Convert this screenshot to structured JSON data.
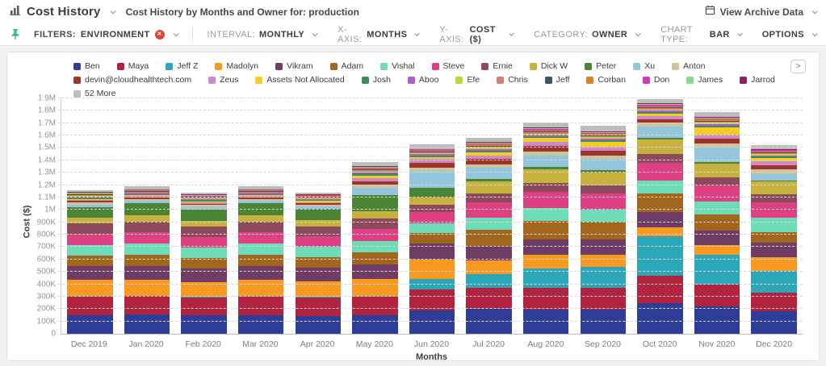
{
  "header": {
    "title": "Cost History",
    "subtitle": "Cost History by Months and Owner for: production",
    "archive_label": "View Archive Data"
  },
  "filter_bar": {
    "filters_label": "FILTERS:",
    "filters_value": "ENVIRONMENT",
    "filters_badge": "✕",
    "controls": [
      {
        "label": "INTERVAL:",
        "value": "MONTHLY"
      },
      {
        "label": "X-AXIS:",
        "value": "MONTHS"
      },
      {
        "label": "Y-AXIS:",
        "value": "COST ($)"
      },
      {
        "label": "CATEGORY:",
        "value": "OWNER"
      },
      {
        "label": "CHART TYPE:",
        "value": "BAR"
      },
      {
        "label": "",
        "value": "OPTIONS"
      }
    ]
  },
  "legend_next_button": ">",
  "chart_data": {
    "type": "bar",
    "stacked": true,
    "xlabel": "Months",
    "ylabel": "Cost ($)",
    "ylim": [
      0,
      1900000
    ],
    "ytick_step": 100000,
    "ytick_labels": [
      "0",
      "100K",
      "200K",
      "300K",
      "400K",
      "500K",
      "600K",
      "700K",
      "800K",
      "900K",
      "1M",
      "1.1M",
      "1.2M",
      "1.3M",
      "1.4M",
      "1.5M",
      "1.6M",
      "1.7M",
      "1.8M",
      "1.9M"
    ],
    "grid": "dashed-horizontal",
    "legend_position": "top",
    "categories": [
      "Dec 2019",
      "Jan 2020",
      "Feb 2020",
      "Mar 2020",
      "Apr 2020",
      "May 2020",
      "Jun 2020",
      "Jul 2020",
      "Aug 2020",
      "Sep 2020",
      "Oct 2020",
      "Nov 2020",
      "Dec 2020"
    ],
    "values_unit": "thousand USD",
    "approx_totals_k": [
      1161,
      1193,
      1140,
      1193,
      1143,
      1390,
      1531,
      1582,
      1707,
      1677,
      1892,
      1789,
      1524
    ],
    "series": [
      {
        "name": "Ben",
        "color": "#2e3d96",
        "values": [
          150,
          155,
          150,
          150,
          145,
          150,
          190,
          200,
          195,
          195,
          250,
          220,
          180
        ]
      },
      {
        "name": "Maya",
        "color": "#b22340",
        "values": [
          150,
          150,
          145,
          150,
          148,
          150,
          165,
          170,
          175,
          175,
          220,
          180,
          150
        ]
      },
      {
        "name": "Jeff Z",
        "color": "#2ba7b8",
        "values": [
          4,
          4,
          4,
          4,
          4,
          8,
          88,
          110,
          160,
          170,
          320,
          240,
          180
        ]
      },
      {
        "name": "Madolyn",
        "color": "#f89a22",
        "values": [
          130,
          125,
          120,
          130,
          125,
          135,
          159,
          110,
          105,
          100,
          72,
          75,
          110
        ]
      },
      {
        "name": "Vikram",
        "color": "#6e3c64",
        "values": [
          110,
          115,
          110,
          115,
          110,
          120,
          124,
          120,
          125,
          120,
          120,
          120,
          115
        ]
      },
      {
        "name": "Adam",
        "color": "#a2661f",
        "values": [
          87,
          90,
          85,
          90,
          85,
          95,
          88,
          130,
          150,
          145,
          150,
          130,
          85
        ]
      },
      {
        "name": "Vishal",
        "color": "#6edcb7",
        "values": [
          87,
          90,
          85,
          90,
          85,
          90,
          81,
          100,
          105,
          100,
          102,
          100,
          120
        ]
      },
      {
        "name": "Steve",
        "color": "#dd4183",
        "values": [
          88,
          90,
          85,
          90,
          85,
          95,
          87,
          120,
          130,
          125,
          143,
          130,
          120
        ]
      },
      {
        "name": "Ernie",
        "color": "#8c4a5c",
        "values": [
          85,
          85,
          80,
          85,
          80,
          85,
          57,
          70,
          75,
          70,
          76,
          70,
          65
        ]
      },
      {
        "name": "Dick W",
        "color": "#c7b13f",
        "values": [
          49,
          55,
          50,
          55,
          50,
          60,
          59,
          100,
          110,
          105,
          115,
          110,
          105
        ]
      },
      {
        "name": "Peter",
        "color": "#4c8436",
        "values": [
          85,
          95,
          90,
          95,
          90,
          130,
          81,
          20,
          15,
          15,
          15,
          12,
          10
        ]
      },
      {
        "name": "Xu",
        "color": "#93c6dd",
        "values": [
          20,
          20,
          20,
          20,
          20,
          60,
          138,
          90,
          95,
          90,
          90,
          120,
          50
        ]
      },
      {
        "name": "Anton",
        "color": "#ccc49a",
        "values": [
          15,
          15,
          15,
          15,
          15,
          25,
          25,
          30,
          30,
          30,
          30,
          30,
          35
        ]
      },
      {
        "name": "devin@cloudhealthtech.com",
        "color": "#a1342a",
        "values": [
          12,
          12,
          12,
          12,
          12,
          30,
          40,
          40,
          45,
          40,
          28,
          40,
          35
        ]
      },
      {
        "name": "Zeus",
        "color": "#cc8ac8",
        "values": [
          10,
          10,
          10,
          10,
          10,
          25,
          30,
          30,
          35,
          30,
          26,
          30,
          30
        ]
      },
      {
        "name": "Assets Not Allocated",
        "color": "#f3cd26",
        "values": [
          8,
          8,
          8,
          8,
          8,
          20,
          15,
          25,
          30,
          40,
          18,
          60,
          30
        ]
      },
      {
        "name": "Josh",
        "color": "#3e8d5e",
        "values": [
          10,
          10,
          10,
          10,
          10,
          15,
          12,
          15,
          15,
          15,
          15,
          15,
          12
        ]
      },
      {
        "name": "Aboo",
        "color": "#b55ace",
        "values": [
          8,
          8,
          8,
          8,
          8,
          10,
          10,
          12,
          12,
          12,
          12,
          12,
          10
        ]
      },
      {
        "name": "Efe",
        "color": "#c2d735",
        "values": [
          6,
          6,
          6,
          6,
          6,
          8,
          8,
          10,
          10,
          10,
          10,
          10,
          8
        ]
      },
      {
        "name": "Chris",
        "color": "#d4806f",
        "values": [
          6,
          6,
          6,
          6,
          6,
          8,
          8,
          10,
          10,
          10,
          10,
          10,
          8
        ]
      },
      {
        "name": "Jeff",
        "color": "#3d555e",
        "values": [
          6,
          6,
          6,
          6,
          6,
          8,
          8,
          8,
          8,
          8,
          8,
          8,
          8
        ]
      },
      {
        "name": "Corban",
        "color": "#d8832b",
        "values": [
          5,
          5,
          5,
          5,
          5,
          8,
          8,
          8,
          8,
          8,
          8,
          8,
          8
        ]
      },
      {
        "name": "Don",
        "color": "#d538b4",
        "values": [
          5,
          5,
          5,
          5,
          5,
          8,
          8,
          8,
          8,
          8,
          8,
          8,
          8
        ]
      },
      {
        "name": "James",
        "color": "#89da87",
        "values": [
          5,
          5,
          5,
          5,
          5,
          6,
          6,
          8,
          8,
          8,
          8,
          8,
          6
        ]
      },
      {
        "name": "Jarrod",
        "color": "#8e2158",
        "values": [
          5,
          5,
          5,
          5,
          5,
          6,
          6,
          8,
          8,
          8,
          8,
          8,
          6
        ]
      },
      {
        "name": "52 More",
        "color": "#bdbdbd",
        "values": [
          15,
          18,
          15,
          18,
          15,
          35,
          30,
          30,
          40,
          40,
          30,
          35,
          30
        ]
      }
    ]
  }
}
